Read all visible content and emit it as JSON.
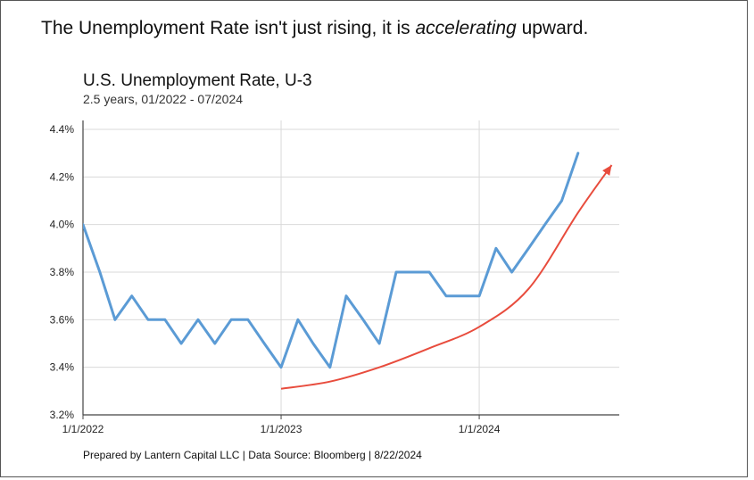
{
  "headline": {
    "before": "The Unemployment Rate isn't just rising, it is ",
    "emphasis": "accelerating",
    "after": " upward."
  },
  "footer": "Prepared by Lantern Capital LLC | Data Source: Bloomberg | 8/22/2024",
  "colors": {
    "series": "#5b9bd5",
    "trend_arrow": "#e84c3d",
    "grid": "#d9d9d9",
    "axis": "#444444"
  },
  "chart_data": {
    "type": "line",
    "title": "U.S. Unemployment Rate, U-3",
    "subtitle": "2.5 years, 01/2022 - 07/2024",
    "xlabel": "",
    "ylabel": "",
    "ylim": [
      3.2,
      4.4
    ],
    "yticks": [
      3.2,
      3.4,
      3.6,
      3.8,
      4.0,
      4.2,
      4.4
    ],
    "ytick_labels": [
      "3.2%",
      "3.4%",
      "3.6%",
      "3.8%",
      "4.0%",
      "4.2%",
      "4.4%"
    ],
    "xticks": [
      "1/1/2022",
      "1/1/2023",
      "1/1/2024"
    ],
    "x_range": [
      "2022-01-01",
      "2024-09-15"
    ],
    "grid": true,
    "series": [
      {
        "x": [
          "2022-01",
          "2022-02",
          "2022-03",
          "2022-04",
          "2022-05",
          "2022-06",
          "2022-07",
          "2022-08",
          "2022-09",
          "2022-10",
          "2022-11",
          "2022-12",
          "2023-01",
          "2023-02",
          "2023-03",
          "2023-04",
          "2023-05",
          "2023-06",
          "2023-07",
          "2023-08",
          "2023-09",
          "2023-10",
          "2023-11",
          "2023-12",
          "2024-01",
          "2024-02",
          "2024-03",
          "2024-04",
          "2024-05",
          "2024-06",
          "2024-07"
        ],
        "values": [
          4.0,
          3.8,
          3.6,
          3.7,
          3.6,
          3.6,
          3.5,
          3.6,
          3.5,
          3.6,
          3.6,
          3.5,
          3.4,
          3.6,
          3.5,
          3.4,
          3.7,
          3.6,
          3.5,
          3.8,
          3.8,
          3.8,
          3.7,
          3.7,
          3.7,
          3.9,
          3.8,
          3.9,
          4.0,
          4.1,
          4.3
        ]
      }
    ],
    "annotation": {
      "type": "curved-arrow",
      "x": [
        "2023-01",
        "2023-04",
        "2023-07",
        "2023-10",
        "2024-01",
        "2024-04",
        "2024-07"
      ],
      "values": [
        3.31,
        3.34,
        3.4,
        3.48,
        3.57,
        3.73,
        4.05
      ],
      "end": {
        "x": "2024-09",
        "value": 4.25
      }
    }
  }
}
